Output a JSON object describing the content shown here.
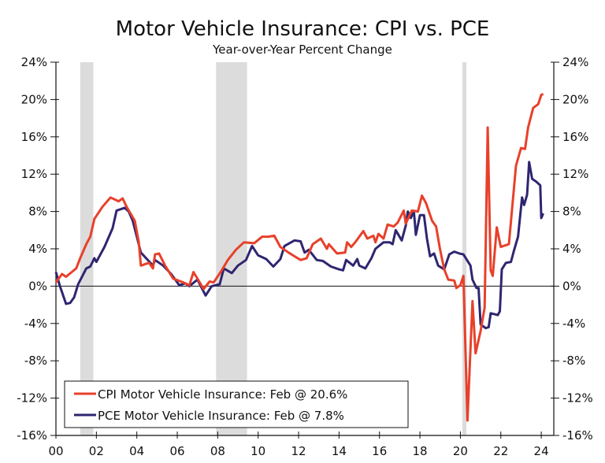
{
  "chart_data": {
    "type": "line",
    "title": "Motor Vehicle Insurance: CPI vs. PCE",
    "subtitle": "Year-over-Year Percent Change",
    "xlabel": "",
    "ylabel": "",
    "xlim": [
      2000,
      2024.6
    ],
    "ylim": [
      -16,
      24
    ],
    "x_tick_labels": [
      "00",
      "02",
      "04",
      "06",
      "08",
      "10",
      "12",
      "14",
      "16",
      "18",
      "20",
      "22",
      "24"
    ],
    "x_tick_values": [
      2000,
      2002,
      2004,
      2006,
      2008,
      2010,
      2012,
      2014,
      2016,
      2018,
      2020,
      2022,
      2024
    ],
    "y_tick_values": [
      -16,
      -12,
      -8,
      -4,
      0,
      4,
      8,
      12,
      16,
      20,
      24
    ],
    "y_tick_labels": [
      "-16%",
      "-12%",
      "-8%",
      "-4%",
      "0%",
      "4%",
      "8%",
      "12%",
      "16%",
      "20%",
      "24%"
    ],
    "grid": false,
    "zero_line": true,
    "legend_position": "bottom-left",
    "recessions": [
      [
        2001.2,
        2001.85
      ],
      [
        2007.92,
        2009.45
      ],
      [
        2020.1,
        2020.3
      ]
    ],
    "recession_color": "#dcdcdc",
    "series": [
      {
        "name": "CPI Motor Vehicle Insurance: Feb @ 20.6%",
        "color": "#e8402a",
        "points": [
          [
            2000.0,
            0.4
          ],
          [
            2000.3,
            1.3
          ],
          [
            2000.5,
            1.0
          ],
          [
            2001.0,
            1.9
          ],
          [
            2001.2,
            3.0
          ],
          [
            2001.5,
            4.5
          ],
          [
            2001.7,
            5.3
          ],
          [
            2001.9,
            7.2
          ],
          [
            2002.3,
            8.5
          ],
          [
            2002.7,
            9.5
          ],
          [
            2003.1,
            9.1
          ],
          [
            2003.3,
            9.4
          ],
          [
            2003.5,
            8.5
          ],
          [
            2003.9,
            7.0
          ],
          [
            2004.1,
            4.7
          ],
          [
            2004.2,
            2.2
          ],
          [
            2004.6,
            2.5
          ],
          [
            2004.8,
            1.9
          ],
          [
            2004.9,
            3.4
          ],
          [
            2005.1,
            3.5
          ],
          [
            2005.4,
            2.2
          ],
          [
            2005.8,
            0.8
          ],
          [
            2006.3,
            0.4
          ],
          [
            2006.6,
            0.1
          ],
          [
            2006.8,
            1.5
          ],
          [
            2007.0,
            0.8
          ],
          [
            2007.3,
            -0.3
          ],
          [
            2007.6,
            0.5
          ],
          [
            2007.8,
            0.4
          ],
          [
            2008.2,
            1.7
          ],
          [
            2008.5,
            2.8
          ],
          [
            2008.9,
            3.9
          ],
          [
            2009.3,
            4.7
          ],
          [
            2009.8,
            4.6
          ],
          [
            2010.2,
            5.3
          ],
          [
            2010.5,
            5.3
          ],
          [
            2010.8,
            5.4
          ],
          [
            2011.1,
            4.2
          ],
          [
            2011.5,
            3.6
          ],
          [
            2011.8,
            3.2
          ],
          [
            2012.1,
            2.8
          ],
          [
            2012.4,
            3.0
          ],
          [
            2012.7,
            4.5
          ],
          [
            2013.1,
            5.1
          ],
          [
            2013.4,
            4.0
          ],
          [
            2013.5,
            4.5
          ],
          [
            2013.9,
            3.5
          ],
          [
            2014.3,
            3.6
          ],
          [
            2014.4,
            4.7
          ],
          [
            2014.6,
            4.2
          ],
          [
            2014.8,
            4.7
          ],
          [
            2015.2,
            5.9
          ],
          [
            2015.4,
            5.1
          ],
          [
            2015.7,
            5.4
          ],
          [
            2015.8,
            4.7
          ],
          [
            2015.95,
            5.6
          ],
          [
            2016.2,
            5.1
          ],
          [
            2016.4,
            6.6
          ],
          [
            2016.7,
            6.4
          ],
          [
            2016.9,
            6.8
          ],
          [
            2017.2,
            8.1
          ],
          [
            2017.3,
            6.7
          ],
          [
            2017.6,
            8.1
          ],
          [
            2017.9,
            8.0
          ],
          [
            2018.1,
            9.7
          ],
          [
            2018.3,
            8.9
          ],
          [
            2018.6,
            7.0
          ],
          [
            2018.8,
            6.4
          ],
          [
            2019.0,
            3.9
          ],
          [
            2019.2,
            1.8
          ],
          [
            2019.4,
            0.7
          ],
          [
            2019.7,
            0.6
          ],
          [
            2019.8,
            -0.2
          ],
          [
            2020.0,
            0.1
          ],
          [
            2020.15,
            1.1
          ],
          [
            2020.35,
            -14.4
          ],
          [
            2020.6,
            -1.6
          ],
          [
            2020.75,
            -7.2
          ],
          [
            2021.0,
            -4.8
          ],
          [
            2021.2,
            -2.3
          ],
          [
            2021.35,
            17.0
          ],
          [
            2021.5,
            1.7
          ],
          [
            2021.6,
            1.1
          ],
          [
            2021.8,
            6.3
          ],
          [
            2022.0,
            4.2
          ],
          [
            2022.4,
            4.5
          ],
          [
            2022.75,
            12.9
          ],
          [
            2023.0,
            14.8
          ],
          [
            2023.2,
            14.7
          ],
          [
            2023.35,
            17.0
          ],
          [
            2023.6,
            19.1
          ],
          [
            2023.85,
            19.5
          ],
          [
            2024.0,
            20.5
          ],
          [
            2024.1,
            20.6
          ]
        ]
      },
      {
        "name": "PCE Motor Vehicle Insurance: Feb @ 7.8%",
        "color": "#2e2670",
        "points": [
          [
            2000.0,
            1.5
          ],
          [
            2000.2,
            0.0
          ],
          [
            2000.5,
            -1.9
          ],
          [
            2000.7,
            -1.8
          ],
          [
            2000.9,
            -1.2
          ],
          [
            2001.1,
            0.2
          ],
          [
            2001.5,
            1.9
          ],
          [
            2001.7,
            2.1
          ],
          [
            2001.9,
            3.0
          ],
          [
            2002.0,
            2.6
          ],
          [
            2002.4,
            4.2
          ],
          [
            2002.8,
            6.2
          ],
          [
            2003.0,
            8.1
          ],
          [
            2003.4,
            8.4
          ],
          [
            2003.6,
            8.0
          ],
          [
            2003.8,
            7.0
          ],
          [
            2004.0,
            5.3
          ],
          [
            2004.2,
            3.6
          ],
          [
            2004.5,
            2.9
          ],
          [
            2004.8,
            2.2
          ],
          [
            2004.9,
            2.8
          ],
          [
            2005.3,
            2.2
          ],
          [
            2005.7,
            1.3
          ],
          [
            2006.1,
            0.1
          ],
          [
            2006.4,
            0.3
          ],
          [
            2006.6,
            0.0
          ],
          [
            2007.0,
            0.7
          ],
          [
            2007.4,
            -1.0
          ],
          [
            2007.7,
            0.0
          ],
          [
            2008.1,
            0.2
          ],
          [
            2008.3,
            1.9
          ],
          [
            2008.7,
            1.4
          ],
          [
            2009.0,
            2.2
          ],
          [
            2009.4,
            2.8
          ],
          [
            2009.7,
            4.3
          ],
          [
            2010.0,
            3.3
          ],
          [
            2010.4,
            2.9
          ],
          [
            2010.75,
            2.1
          ],
          [
            2011.1,
            2.9
          ],
          [
            2011.3,
            4.3
          ],
          [
            2011.8,
            4.9
          ],
          [
            2012.1,
            4.8
          ],
          [
            2012.3,
            3.6
          ],
          [
            2012.5,
            3.9
          ],
          [
            2012.9,
            2.8
          ],
          [
            2013.2,
            2.7
          ],
          [
            2013.6,
            2.1
          ],
          [
            2014.0,
            1.8
          ],
          [
            2014.2,
            1.7
          ],
          [
            2014.35,
            2.8
          ],
          [
            2014.7,
            2.2
          ],
          [
            2014.9,
            2.9
          ],
          [
            2015.0,
            2.2
          ],
          [
            2015.3,
            1.9
          ],
          [
            2015.6,
            3.0
          ],
          [
            2015.8,
            4.0
          ],
          [
            2016.2,
            4.7
          ],
          [
            2016.5,
            4.7
          ],
          [
            2016.65,
            4.5
          ],
          [
            2016.8,
            6.0
          ],
          [
            2017.1,
            4.9
          ],
          [
            2017.3,
            6.5
          ],
          [
            2017.4,
            8.0
          ],
          [
            2017.55,
            7.3
          ],
          [
            2017.7,
            8.0
          ],
          [
            2017.8,
            5.5
          ],
          [
            2018.0,
            7.6
          ],
          [
            2018.2,
            7.6
          ],
          [
            2018.35,
            5.1
          ],
          [
            2018.5,
            3.2
          ],
          [
            2018.7,
            3.5
          ],
          [
            2018.9,
            2.2
          ],
          [
            2019.2,
            1.8
          ],
          [
            2019.45,
            3.4
          ],
          [
            2019.7,
            3.7
          ],
          [
            2019.95,
            3.5
          ],
          [
            2020.15,
            3.4
          ],
          [
            2020.5,
            2.2
          ],
          [
            2020.6,
            0.7
          ],
          [
            2020.8,
            -0.2
          ],
          [
            2020.9,
            -0.2
          ],
          [
            2021.0,
            -4.1
          ],
          [
            2021.25,
            -4.5
          ],
          [
            2021.4,
            -4.4
          ],
          [
            2021.5,
            -2.9
          ],
          [
            2021.85,
            -3.1
          ],
          [
            2021.95,
            -2.7
          ],
          [
            2022.05,
            1.8
          ],
          [
            2022.25,
            2.5
          ],
          [
            2022.5,
            2.6
          ],
          [
            2022.65,
            3.8
          ],
          [
            2022.85,
            5.3
          ],
          [
            2023.05,
            9.5
          ],
          [
            2023.15,
            8.7
          ],
          [
            2023.3,
            9.8
          ],
          [
            2023.4,
            13.3
          ],
          [
            2023.55,
            11.5
          ],
          [
            2023.75,
            11.2
          ],
          [
            2023.95,
            10.8
          ],
          [
            2024.0,
            7.3
          ],
          [
            2024.1,
            7.8
          ]
        ]
      }
    ]
  }
}
